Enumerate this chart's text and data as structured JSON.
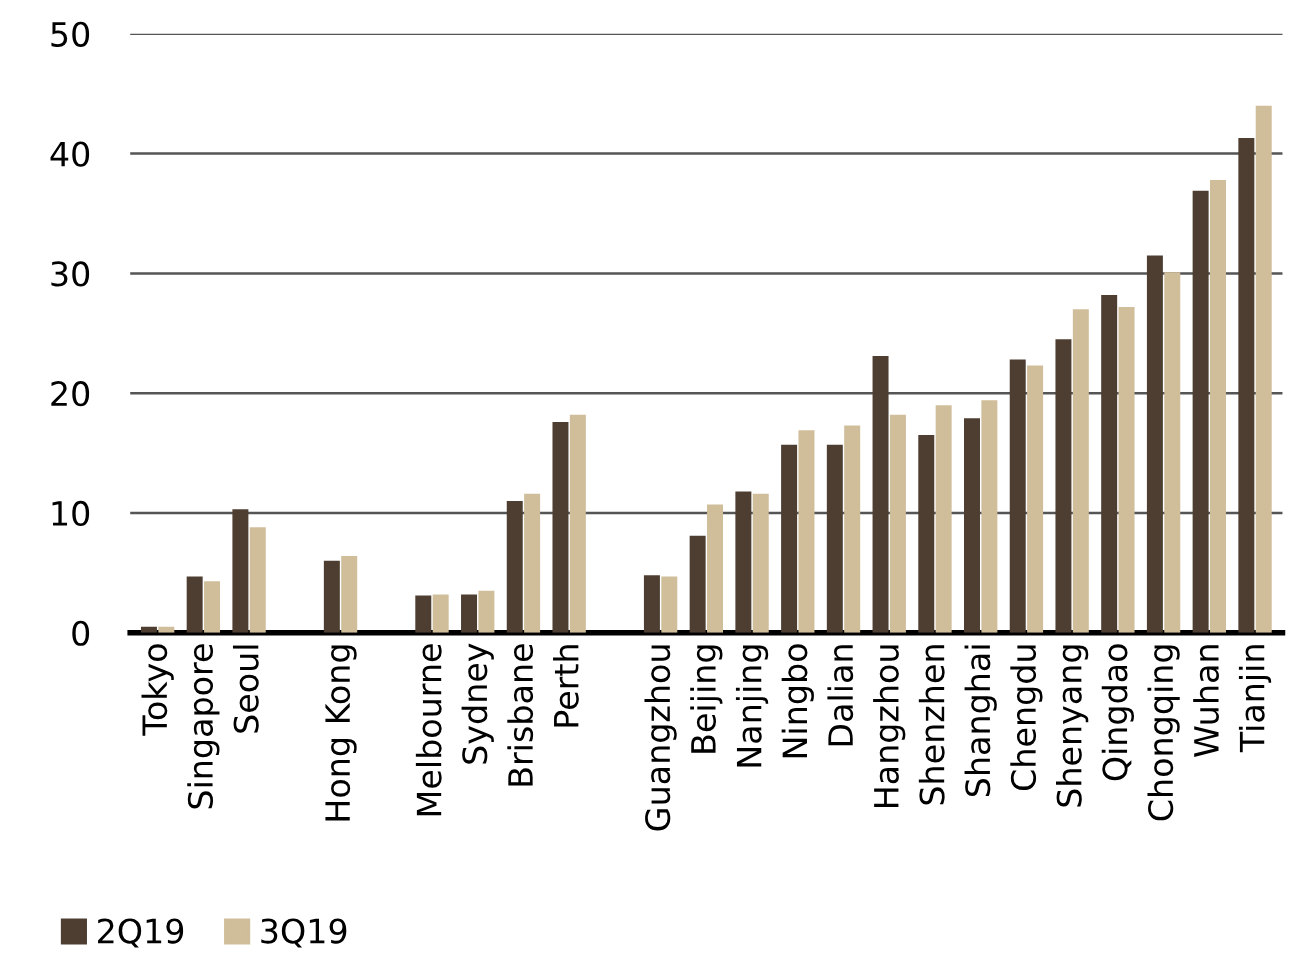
{
  "chart_data": {
    "type": "bar",
    "categories": [
      "Tokyo",
      "Singapore",
      "Seoul",
      null,
      "Hong Kong",
      null,
      "Melbourne",
      "Sydney",
      "Brisbane",
      "Perth",
      null,
      "Guangzhou",
      "Beijing",
      "Nanjing",
      "Ningbo",
      "Dalian",
      "Hangzhou",
      "Shenzhen",
      "Shanghai",
      "Chengdu",
      "Shenyang",
      "Qingdao",
      "Chongqing",
      "Wuhan",
      "Tianjin"
    ],
    "series": [
      {
        "name": "2Q19",
        "color": "#4e3e32",
        "values": [
          0.5,
          4.7,
          10.3,
          null,
          6.0,
          null,
          3.1,
          3.2,
          11.0,
          17.6,
          null,
          4.8,
          8.1,
          11.8,
          15.7,
          15.7,
          23.1,
          16.5,
          17.9,
          22.8,
          24.5,
          28.2,
          31.5,
          36.9,
          41.3
        ]
      },
      {
        "name": "3Q19",
        "color": "#d0bd9a",
        "values": [
          0.5,
          4.3,
          8.8,
          null,
          6.4,
          null,
          3.2,
          3.5,
          11.6,
          18.2,
          null,
          4.7,
          10.7,
          11.6,
          16.9,
          17.3,
          18.2,
          19.0,
          19.4,
          22.3,
          27.0,
          27.2,
          30.1,
          37.8,
          44.0
        ]
      }
    ],
    "ylim": [
      0,
      50
    ],
    "yticks": [
      0,
      10,
      20,
      30,
      40,
      50
    ],
    "grid": "y",
    "legend": "bottom left"
  }
}
